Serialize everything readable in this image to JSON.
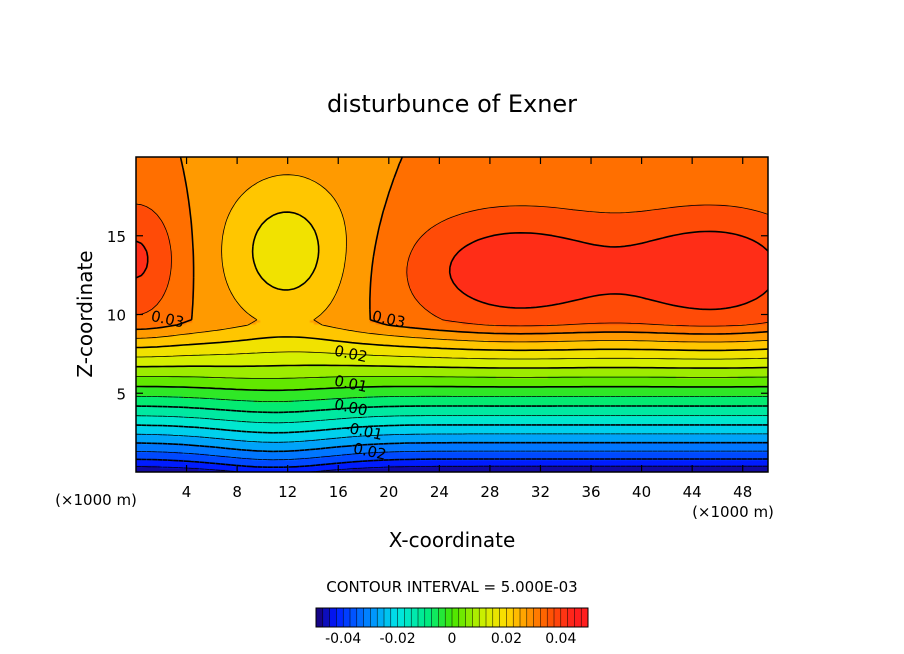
{
  "chart_data": {
    "type": "contour",
    "title": "disturbunce of Exner",
    "xlabel": "X-coordinate",
    "ylabel": "Z-coordinate",
    "x_unit_left": "(×1000 m)",
    "x_unit_right": "(×1000 m)",
    "xlim": [
      0,
      50
    ],
    "ylim": [
      0,
      20
    ],
    "x_ticks": [
      4,
      8,
      12,
      16,
      20,
      24,
      28,
      32,
      36,
      40,
      44,
      48
    ],
    "y_ticks": [
      5,
      10,
      15
    ],
    "contour_interval_text": "CONTOUR INTERVAL = 5.000E-03",
    "contour_interval": 0.005,
    "value_range": [
      -0.05,
      0.045
    ],
    "contour_labels": [
      {
        "text": "0.03",
        "x": 2.5,
        "z": 9.7
      },
      {
        "text": "0.03",
        "x": 20,
        "z": 9.7
      },
      {
        "text": "0.02",
        "x": 17,
        "z": 7.5
      },
      {
        "text": "0.01",
        "x": 17,
        "z": 5.6
      },
      {
        "text": "0.00",
        "x": 17,
        "z": 4.1
      },
      {
        "text": "-0.01",
        "x": 18,
        "z": 2.6
      },
      {
        "text": "0.02",
        "x": 18.5,
        "z": 1.3
      }
    ],
    "colorbar": {
      "ticks": [
        "-0.04",
        "-0.02",
        "0",
        "0.02",
        "0.04"
      ],
      "tick_values": [
        -0.04,
        -0.02,
        0,
        0.02,
        0.04
      ],
      "range": [
        -0.05,
        0.05
      ]
    },
    "colors": {
      "max": "#ff1f1f",
      "high": "#ff7a00",
      "mid": "#ffe000",
      "green": "#44e600",
      "cyan": "#00e6e6",
      "low": "#0018ff",
      "min": "#1a006e"
    }
  }
}
